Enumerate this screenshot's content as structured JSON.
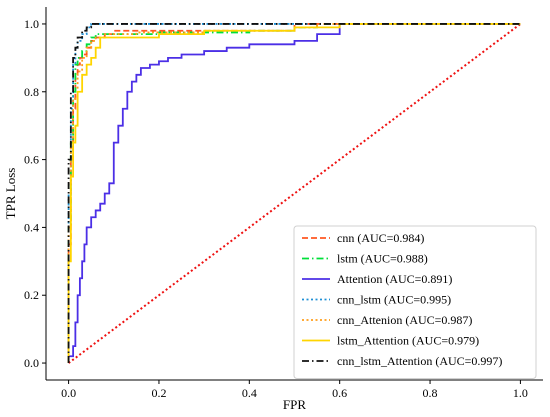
{
  "chart_data": {
    "type": "line",
    "title": "",
    "xlabel": "FPR",
    "ylabel": "TPR Loss",
    "xlim": [
      -0.05,
      1.05
    ],
    "ylim": [
      -0.05,
      1.05
    ],
    "xticks": [
      "0.0",
      "0.2",
      "0.4",
      "0.6",
      "0.8",
      "1.0"
    ],
    "yticks": [
      "0.0",
      "0.2",
      "0.4",
      "0.6",
      "0.8",
      "1.0"
    ],
    "grid": false,
    "legend_position": "lower-right",
    "series": [
      {
        "name": "cnn (AUC=0.984)",
        "color": "#ff5722",
        "dash": "dashed",
        "points": [
          [
            0,
            0
          ],
          [
            0,
            0.35
          ],
          [
            0.005,
            0.6
          ],
          [
            0.01,
            0.75
          ],
          [
            0.015,
            0.85
          ],
          [
            0.02,
            0.88
          ],
          [
            0.025,
            0.9
          ],
          [
            0.03,
            0.91
          ],
          [
            0.04,
            0.93
          ],
          [
            0.05,
            0.95
          ],
          [
            0.06,
            0.96
          ],
          [
            0.08,
            0.97
          ],
          [
            0.1,
            0.98
          ],
          [
            0.2,
            0.98
          ],
          [
            0.4,
            0.98
          ],
          [
            0.5,
            1.0
          ],
          [
            1.0,
            1.0
          ]
        ]
      },
      {
        "name": "lstm (AUC=0.988)",
        "color": "#00e03a",
        "dash": "dashdot",
        "points": [
          [
            0,
            0
          ],
          [
            0,
            0.4
          ],
          [
            0.005,
            0.65
          ],
          [
            0.01,
            0.8
          ],
          [
            0.015,
            0.88
          ],
          [
            0.02,
            0.9
          ],
          [
            0.03,
            0.92
          ],
          [
            0.04,
            0.94
          ],
          [
            0.05,
            0.96
          ],
          [
            0.06,
            0.97
          ],
          [
            0.1,
            0.97
          ],
          [
            0.2,
            0.975
          ],
          [
            0.4,
            0.98
          ],
          [
            0.5,
            0.99
          ],
          [
            0.55,
            1.0
          ],
          [
            1.0,
            1.0
          ]
        ]
      },
      {
        "name": "Attention (AUC=0.891)",
        "color": "#4b2fe6",
        "dash": "solid",
        "points": [
          [
            0,
            0
          ],
          [
            0,
            0.02
          ],
          [
            0.01,
            0.05
          ],
          [
            0.015,
            0.12
          ],
          [
            0.02,
            0.2
          ],
          [
            0.025,
            0.25
          ],
          [
            0.03,
            0.3
          ],
          [
            0.035,
            0.35
          ],
          [
            0.04,
            0.4
          ],
          [
            0.05,
            0.43
          ],
          [
            0.06,
            0.45
          ],
          [
            0.07,
            0.47
          ],
          [
            0.08,
            0.5
          ],
          [
            0.09,
            0.53
          ],
          [
            0.1,
            0.55
          ],
          [
            0.1,
            0.65
          ],
          [
            0.11,
            0.7
          ],
          [
            0.12,
            0.75
          ],
          [
            0.13,
            0.8
          ],
          [
            0.14,
            0.83
          ],
          [
            0.15,
            0.85
          ],
          [
            0.16,
            0.87
          ],
          [
            0.18,
            0.88
          ],
          [
            0.2,
            0.89
          ],
          [
            0.22,
            0.9
          ],
          [
            0.25,
            0.91
          ],
          [
            0.3,
            0.92
          ],
          [
            0.35,
            0.93
          ],
          [
            0.4,
            0.94
          ],
          [
            0.45,
            0.94
          ],
          [
            0.5,
            0.95
          ],
          [
            0.55,
            0.97
          ],
          [
            0.6,
            1.0
          ],
          [
            1.0,
            1.0
          ]
        ]
      },
      {
        "name": "cnn_lstm (AUC=0.995)",
        "color": "#1f90d6",
        "dash": "dotted",
        "points": [
          [
            0,
            0
          ],
          [
            0,
            0.5
          ],
          [
            0.005,
            0.75
          ],
          [
            0.01,
            0.88
          ],
          [
            0.015,
            0.93
          ],
          [
            0.02,
            0.95
          ],
          [
            0.03,
            0.97
          ],
          [
            0.04,
            0.99
          ],
          [
            0.05,
            1.0
          ],
          [
            1.0,
            1.0
          ]
        ]
      },
      {
        "name": "cnn_Attenion (AUC=0.987)",
        "color": "#ff9e1b",
        "dash": "dotted",
        "points": [
          [
            0,
            0
          ],
          [
            0,
            0.4
          ],
          [
            0.005,
            0.65
          ],
          [
            0.01,
            0.78
          ],
          [
            0.02,
            0.86
          ],
          [
            0.03,
            0.9
          ],
          [
            0.04,
            0.93
          ],
          [
            0.05,
            0.95
          ],
          [
            0.06,
            0.96
          ],
          [
            0.08,
            0.97
          ],
          [
            0.15,
            0.975
          ],
          [
            0.3,
            0.98
          ],
          [
            0.4,
            0.98
          ],
          [
            0.5,
            0.99
          ],
          [
            0.55,
            1.0
          ],
          [
            1.0,
            1.0
          ]
        ]
      },
      {
        "name": "lstm_Attention (AUC=0.979)",
        "color": "#ffd500",
        "dash": "solid",
        "points": [
          [
            0,
            0
          ],
          [
            0,
            0.3
          ],
          [
            0.005,
            0.55
          ],
          [
            0.01,
            0.65
          ],
          [
            0.015,
            0.7
          ],
          [
            0.02,
            0.8
          ],
          [
            0.03,
            0.85
          ],
          [
            0.04,
            0.88
          ],
          [
            0.05,
            0.9
          ],
          [
            0.06,
            0.93
          ],
          [
            0.07,
            0.96
          ],
          [
            0.1,
            0.96
          ],
          [
            0.2,
            0.97
          ],
          [
            0.3,
            0.97
          ],
          [
            0.3,
            0.98
          ],
          [
            0.45,
            0.98
          ],
          [
            0.5,
            0.99
          ],
          [
            0.6,
            1.0
          ],
          [
            1.0,
            1.0
          ]
        ]
      },
      {
        "name": "cnn_lstm_Attention (AUC=0.997)",
        "color": "#111111",
        "dash": "dashdot",
        "points": [
          [
            0,
            0
          ],
          [
            0,
            0.6
          ],
          [
            0.005,
            0.8
          ],
          [
            0.01,
            0.9
          ],
          [
            0.015,
            0.93
          ],
          [
            0.02,
            0.96
          ],
          [
            0.03,
            0.98
          ],
          [
            0.04,
            0.99
          ],
          [
            0.05,
            1.0
          ],
          [
            1.0,
            1.0
          ]
        ]
      }
    ],
    "reference_line": {
      "color": "#ee1111",
      "dash": "dotted",
      "points": [
        [
          0,
          0
        ],
        [
          1,
          1
        ]
      ]
    }
  }
}
